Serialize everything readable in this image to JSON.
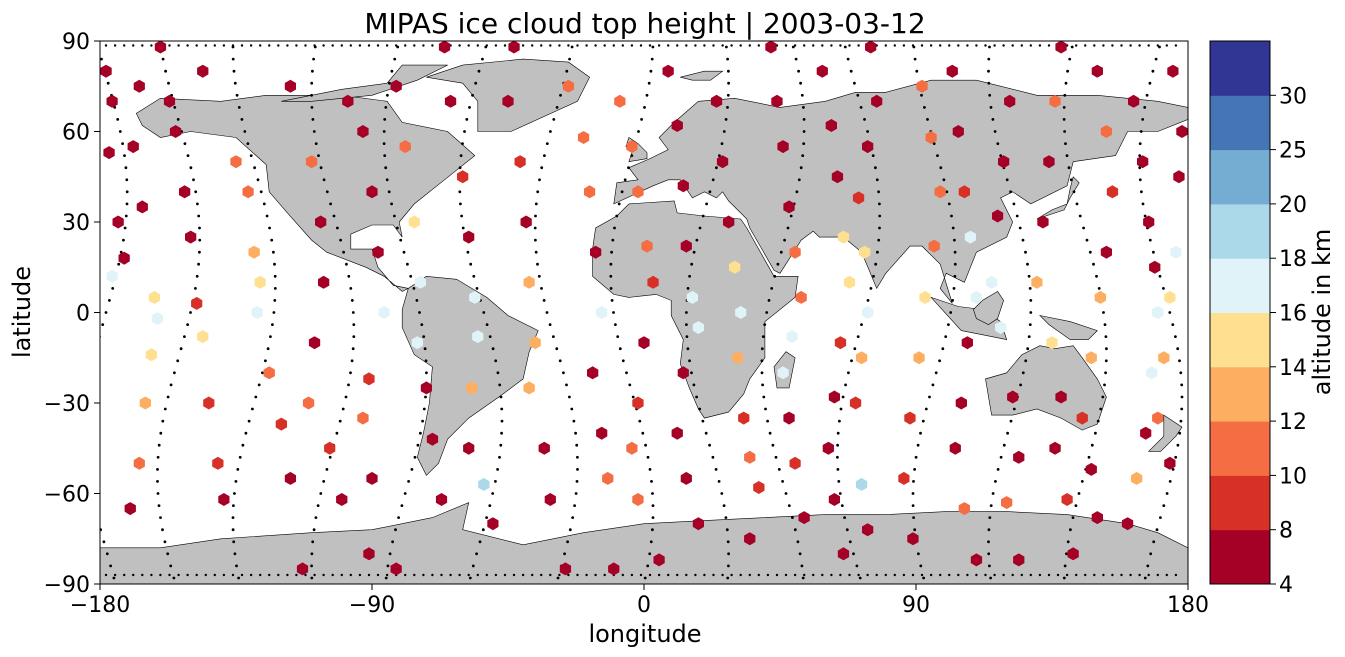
{
  "chart_data": {
    "type": "scatter",
    "title": "MIPAS ice cloud top height | 2003-03-12",
    "xlabel": "longitude",
    "ylabel": "latitude",
    "xlim": [
      -180,
      180
    ],
    "ylim": [
      -90,
      90
    ],
    "x_ticks": [
      -180,
      -90,
      0,
      90,
      180
    ],
    "y_ticks": [
      -90,
      -60,
      -30,
      0,
      30,
      60,
      90
    ],
    "x_tick_labels": [
      "−180",
      "−90",
      "0",
      "90",
      "180"
    ],
    "y_tick_labels": [
      "−90",
      "−60",
      "−30",
      "0",
      "30",
      "60",
      "90"
    ],
    "grid": false,
    "land_color": "#c0c0c0",
    "colorbar": {
      "label": "altitude in km",
      "boundaries": [
        4,
        8,
        10,
        12,
        14,
        16,
        18,
        20,
        25,
        30
      ],
      "tick_labels": [
        "4",
        "8",
        "10",
        "12",
        "14",
        "16",
        "18",
        "20",
        "25",
        "30"
      ],
      "colors": [
        "#a50026",
        "#d73027",
        "#f46d43",
        "#fdae61",
        "#fee090",
        "#e0f3f8",
        "#abd9e9",
        "#74add1",
        "#4575b4",
        "#313695"
      ]
    },
    "orbit_tracks": [
      {
        "lon0": -178,
        "amp": 7,
        "phase": 0.0
      },
      {
        "lon0": -154,
        "amp": 7,
        "phase": 0.6
      },
      {
        "lon0": -129,
        "amp": 7,
        "phase": 1.2
      },
      {
        "lon0": -103,
        "amp": 7,
        "phase": 1.8
      },
      {
        "lon0": -79,
        "amp": 7,
        "phase": 2.4
      },
      {
        "lon0": -54,
        "amp": 7,
        "phase": 3.0
      },
      {
        "lon0": -29,
        "amp": 7,
        "phase": 3.6
      },
      {
        "lon0": -4,
        "amp": 7,
        "phase": 4.2
      },
      {
        "lon0": 21,
        "amp": 7,
        "phase": 4.8
      },
      {
        "lon0": 46,
        "amp": 7,
        "phase": 5.4
      },
      {
        "lon0": 71,
        "amp": 7,
        "phase": 0.3
      },
      {
        "lon0": 96,
        "amp": 7,
        "phase": 0.9
      },
      {
        "lon0": 121,
        "amp": 7,
        "phase": 1.5
      },
      {
        "lon0": 146,
        "amp": 7,
        "phase": 2.1
      },
      {
        "lon0": 171,
        "amp": 7,
        "phase": 2.7
      }
    ],
    "points": [
      [
        -178,
        80,
        6
      ],
      [
        -176,
        70,
        6
      ],
      [
        -177,
        53,
        6
      ],
      [
        -174,
        30,
        6
      ],
      [
        -172,
        18,
        6
      ],
      [
        -176,
        12,
        17
      ],
      [
        -167,
        75,
        6
      ],
      [
        -169,
        55,
        6
      ],
      [
        -166,
        35,
        6
      ],
      [
        -162,
        5,
        15
      ],
      [
        -161,
        -2,
        17
      ],
      [
        -163,
        -14,
        15
      ],
      [
        -165,
        -30,
        13
      ],
      [
        -167,
        -50,
        11
      ],
      [
        -170,
        -65,
        6
      ],
      [
        -160,
        88,
        6
      ],
      [
        -157,
        70,
        6
      ],
      [
        -155,
        60,
        6
      ],
      [
        -152,
        40,
        6
      ],
      [
        -150,
        25,
        6
      ],
      [
        -148,
        3,
        9
      ],
      [
        -146,
        -8,
        15
      ],
      [
        -144,
        -30,
        9
      ],
      [
        -141,
        -50,
        9
      ],
      [
        -139,
        -62,
        6
      ],
      [
        -146,
        80,
        6
      ],
      [
        -135,
        50,
        11
      ],
      [
        -131,
        40,
        11
      ],
      [
        -129,
        20,
        13
      ],
      [
        -127,
        10,
        15
      ],
      [
        -128,
        0,
        17
      ],
      [
        -124,
        -20,
        11
      ],
      [
        -120,
        -37,
        9
      ],
      [
        -117,
        -55,
        6
      ],
      [
        -113,
        -85,
        6
      ],
      [
        -117,
        75,
        6
      ],
      [
        -110,
        50,
        11
      ],
      [
        -107,
        30,
        6
      ],
      [
        -106,
        10,
        6
      ],
      [
        -109,
        -10,
        6
      ],
      [
        -111,
        -30,
        11
      ],
      [
        -104,
        -45,
        9
      ],
      [
        -100,
        -62,
        6
      ],
      [
        -91,
        -80,
        6
      ],
      [
        -98,
        70,
        6
      ],
      [
        -93,
        60,
        6
      ],
      [
        -90,
        40,
        6
      ],
      [
        -88,
        20,
        6
      ],
      [
        -86,
        0,
        17
      ],
      [
        -91,
        -22,
        9
      ],
      [
        -93,
        -35,
        11
      ],
      [
        -90,
        -55,
        6
      ],
      [
        -82,
        -85,
        6
      ],
      [
        -82,
        75,
        6
      ],
      [
        -79,
        55,
        11
      ],
      [
        -76,
        30,
        15
      ],
      [
        -74,
        10,
        17
      ],
      [
        -75,
        -10,
        17
      ],
      [
        -72,
        -25,
        6
      ],
      [
        -70,
        -42,
        6
      ],
      [
        -67,
        -62,
        6
      ],
      [
        -66,
        88,
        6
      ],
      [
        -64,
        70,
        6
      ],
      [
        -60,
        45,
        9
      ],
      [
        -58,
        25,
        6
      ],
      [
        -56,
        5,
        17
      ],
      [
        -55,
        -8,
        17
      ],
      [
        -57,
        -25,
        13
      ],
      [
        -58,
        -45,
        6
      ],
      [
        -53,
        -57,
        19
      ],
      [
        -50,
        -70,
        6
      ],
      [
        -43,
        88,
        6
      ],
      [
        -45,
        70,
        6
      ],
      [
        -41,
        50,
        9
      ],
      [
        -39,
        30,
        6
      ],
      [
        -38,
        10,
        13
      ],
      [
        -36,
        -10,
        13
      ],
      [
        -38,
        -25,
        13
      ],
      [
        -33,
        -45,
        6
      ],
      [
        -31,
        -62,
        6
      ],
      [
        -26,
        -85,
        6
      ],
      [
        -25,
        75,
        11
      ],
      [
        -20,
        58,
        11
      ],
      [
        -18,
        40,
        11
      ],
      [
        -16,
        20,
        6
      ],
      [
        -14,
        0,
        17
      ],
      [
        -17,
        -20,
        6
      ],
      [
        -14,
        -40,
        6
      ],
      [
        -12,
        -55,
        11
      ],
      [
        -10,
        -85,
        6
      ],
      [
        -8,
        70,
        11
      ],
      [
        -4,
        55,
        11
      ],
      [
        -2,
        40,
        11
      ],
      [
        1,
        22,
        11
      ],
      [
        3,
        10,
        9
      ],
      [
        0,
        -10,
        6
      ],
      [
        -2,
        -30,
        9
      ],
      [
        -4,
        -45,
        11
      ],
      [
        -2,
        -62,
        11
      ],
      [
        5,
        -82,
        6
      ],
      [
        8,
        80,
        6
      ],
      [
        11,
        62,
        6
      ],
      [
        13,
        42,
        6
      ],
      [
        14,
        22,
        6
      ],
      [
        16,
        5,
        17
      ],
      [
        18,
        -5,
        17
      ],
      [
        13,
        -20,
        6
      ],
      [
        11,
        -40,
        6
      ],
      [
        14,
        -55,
        6
      ],
      [
        18,
        -70,
        6
      ],
      [
        24,
        70,
        6
      ],
      [
        26,
        50,
        6
      ],
      [
        28,
        30,
        6
      ],
      [
        30,
        15,
        15
      ],
      [
        32,
        0,
        17
      ],
      [
        31,
        -15,
        13
      ],
      [
        33,
        -35,
        9
      ],
      [
        35,
        -48,
        11
      ],
      [
        38,
        -58,
        9
      ],
      [
        35,
        -75,
        6
      ],
      [
        42,
        88,
        6
      ],
      [
        44,
        70,
        6
      ],
      [
        46,
        55,
        6
      ],
      [
        48,
        35,
        6
      ],
      [
        50,
        20,
        11
      ],
      [
        52,
        5,
        11
      ],
      [
        49,
        -8,
        17
      ],
      [
        46,
        -20,
        17
      ],
      [
        48,
        -35,
        6
      ],
      [
        50,
        -50,
        9
      ],
      [
        53,
        -68,
        6
      ],
      [
        59,
        80,
        6
      ],
      [
        62,
        62,
        6
      ],
      [
        64,
        45,
        6
      ],
      [
        66,
        25,
        15
      ],
      [
        68,
        10,
        15
      ],
      [
        65,
        -10,
        9
      ],
      [
        63,
        -28,
        6
      ],
      [
        61,
        -45,
        6
      ],
      [
        63,
        -62,
        6
      ],
      [
        66,
        -80,
        6
      ],
      [
        75,
        88,
        6
      ],
      [
        77,
        70,
        6
      ],
      [
        74,
        55,
        6
      ],
      [
        71,
        38,
        9
      ],
      [
        73,
        20,
        15
      ],
      [
        74,
        0,
        17
      ],
      [
        72,
        -15,
        13
      ],
      [
        70,
        -30,
        9
      ],
      [
        72,
        -57,
        19
      ],
      [
        74,
        -72,
        6
      ],
      [
        92,
        75,
        11
      ],
      [
        95,
        58,
        11
      ],
      [
        98,
        40,
        11
      ],
      [
        96,
        22,
        11
      ],
      [
        93,
        5,
        15
      ],
      [
        91,
        -15,
        13
      ],
      [
        88,
        -35,
        9
      ],
      [
        86,
        -55,
        9
      ],
      [
        89,
        -75,
        6
      ],
      [
        102,
        80,
        6
      ],
      [
        104,
        60,
        6
      ],
      [
        106,
        40,
        9
      ],
      [
        108,
        25,
        17
      ],
      [
        110,
        5,
        17
      ],
      [
        107,
        -10,
        6
      ],
      [
        105,
        -30,
        6
      ],
      [
        103,
        -45,
        6
      ],
      [
        106,
        -65,
        11
      ],
      [
        110,
        -82,
        6
      ],
      [
        121,
        70,
        6
      ],
      [
        119,
        50,
        6
      ],
      [
        117,
        32,
        6
      ],
      [
        115,
        10,
        17
      ],
      [
        118,
        -5,
        17
      ],
      [
        122,
        -28,
        6
      ],
      [
        124,
        -48,
        6
      ],
      [
        120,
        -63,
        11
      ],
      [
        124,
        -82,
        6
      ],
      [
        138,
        88,
        6
      ],
      [
        136,
        70,
        11
      ],
      [
        134,
        50,
        6
      ],
      [
        132,
        30,
        6
      ],
      [
        130,
        10,
        13
      ],
      [
        135,
        -10,
        15
      ],
      [
        138,
        -28,
        6
      ],
      [
        136,
        -45,
        6
      ],
      [
        140,
        -62,
        9
      ],
      [
        142,
        -80,
        6
      ],
      [
        150,
        80,
        6
      ],
      [
        153,
        60,
        11
      ],
      [
        155,
        40,
        9
      ],
      [
        153,
        20,
        6
      ],
      [
        151,
        5,
        13
      ],
      [
        148,
        -15,
        13
      ],
      [
        145,
        -35,
        9
      ],
      [
        148,
        -52,
        6
      ],
      [
        150,
        -68,
        6
      ],
      [
        162,
        70,
        6
      ],
      [
        165,
        50,
        6
      ],
      [
        167,
        30,
        6
      ],
      [
        169,
        15,
        6
      ],
      [
        170,
        0,
        17
      ],
      [
        168,
        -20,
        17
      ],
      [
        166,
        -40,
        6
      ],
      [
        163,
        -55,
        13
      ],
      [
        160,
        -70,
        6
      ],
      [
        175,
        80,
        6
      ],
      [
        178,
        60,
        6
      ],
      [
        177,
        45,
        6
      ],
      [
        176,
        20,
        17
      ],
      [
        174,
        5,
        15
      ],
      [
        172,
        -15,
        13
      ],
      [
        170,
        -35,
        11
      ],
      [
        174,
        -50,
        6
      ]
    ]
  }
}
